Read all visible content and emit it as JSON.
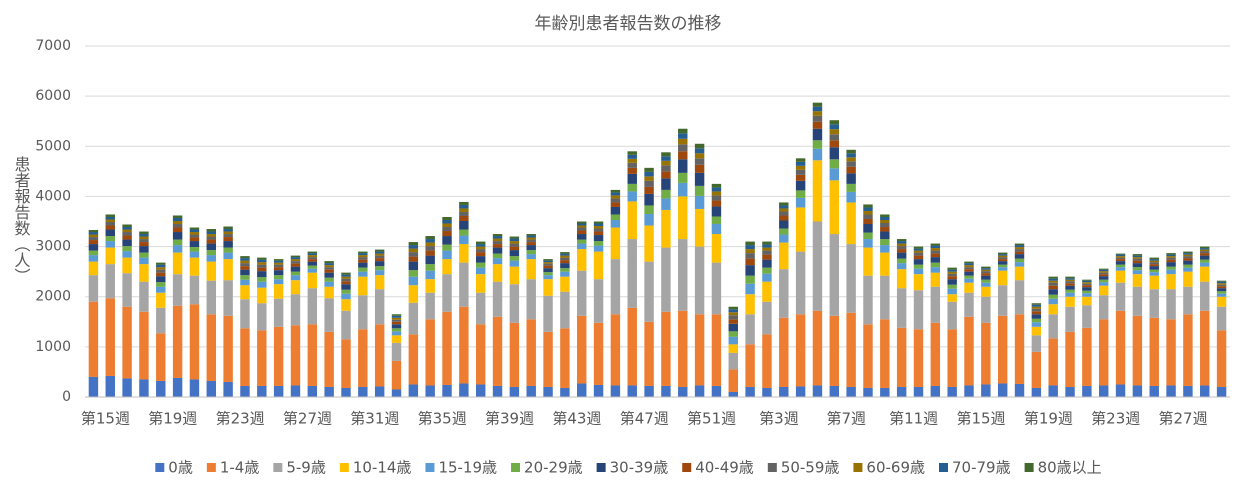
{
  "chart_data": {
    "type": "stacked_bar",
    "title": "年齢別患者報告数の推移",
    "y_label": "患者報告数（人）",
    "categories": [
      "第15週",
      null,
      null,
      null,
      "第19週",
      null,
      null,
      null,
      "第23週",
      null,
      null,
      null,
      "第27週",
      null,
      null,
      null,
      "第31週",
      null,
      null,
      null,
      "第35週",
      null,
      null,
      null,
      "第39週",
      null,
      null,
      null,
      "第43週",
      null,
      null,
      null,
      "第47週",
      null,
      null,
      null,
      "第51週",
      null,
      null,
      null,
      "第3週",
      null,
      null,
      null,
      "第7週",
      null,
      null,
      null,
      "第11週",
      null,
      null,
      null,
      "第15週",
      null,
      null,
      null,
      "第19週",
      null,
      null,
      null,
      "第23週",
      null,
      null,
      null,
      "第27週",
      null,
      null,
      null
    ],
    "ylim": [
      0,
      7000
    ],
    "yticks": [
      0,
      1000,
      2000,
      3000,
      4000,
      5000,
      6000,
      7000
    ],
    "grid": true,
    "legend": "bottom",
    "series": [
      {
        "name": "0歳",
        "color": "#4472c4",
        "values": [
          400,
          420,
          370,
          350,
          320,
          380,
          350,
          320,
          300,
          220,
          220,
          220,
          230,
          220,
          200,
          180,
          200,
          210,
          150,
          250,
          230,
          240,
          270,
          250,
          220,
          200,
          220,
          200,
          180,
          270,
          240,
          230,
          230,
          220,
          220,
          200,
          230,
          220,
          100,
          200,
          180,
          200,
          210,
          230,
          220,
          200,
          180,
          180,
          200,
          200,
          220,
          200,
          230,
          250,
          270,
          260,
          180,
          230,
          200,
          220,
          230,
          250,
          230,
          220,
          230,
          220,
          230,
          200
        ]
      },
      {
        "name": "1-4歳",
        "color": "#ed7d31",
        "values": [
          1500,
          1550,
          1430,
          1350,
          950,
          1440,
          1500,
          1330,
          1320,
          1150,
          1110,
          1180,
          1200,
          1230,
          1100,
          970,
          1150,
          1240,
          570,
          1000,
          1320,
          1460,
          1530,
          1200,
          1380,
          1280,
          1330,
          1100,
          1190,
          1350,
          1240,
          1420,
          1550,
          1280,
          1480,
          1520,
          1420,
          1430,
          450,
          850,
          1070,
          1380,
          1440,
          1490,
          1400,
          1480,
          1270,
          1370,
          1180,
          1150,
          1260,
          1150,
          1370,
          1230,
          1350,
          1390,
          720,
          940,
          1100,
          1160,
          1320,
          1470,
          1390,
          1360,
          1320,
          1430,
          1490,
          1130
        ]
      },
      {
        "name": "5-9歳",
        "color": "#a5a5a5",
        "values": [
          530,
          680,
          670,
          600,
          510,
          630,
          570,
          670,
          710,
          580,
          540,
          560,
          620,
          720,
          670,
          570,
          680,
          700,
          360,
          630,
          530,
          750,
          880,
          630,
          700,
          770,
          800,
          720,
          730,
          900,
          870,
          1100,
          1370,
          1200,
          1280,
          1430,
          1350,
          1030,
          330,
          600,
          650,
          970,
          1250,
          1780,
          1630,
          1370,
          970,
          870,
          790,
          780,
          720,
          550,
          480,
          520,
          610,
          680,
          330,
          480,
          500,
          450,
          480,
          560,
          580,
          570,
          600,
          550,
          580,
          470
        ]
      },
      {
        "name": "10-14歳",
        "color": "#ffc000",
        "values": [
          270,
          330,
          310,
          350,
          300,
          430,
          360,
          380,
          420,
          280,
          310,
          290,
          280,
          310,
          230,
          230,
          370,
          280,
          150,
          350,
          270,
          300,
          370,
          370,
          350,
          350,
          400,
          330,
          300,
          430,
          550,
          630,
          750,
          720,
          750,
          850,
          750,
          570,
          170,
          400,
          400,
          530,
          880,
          1220,
          1070,
          830,
          560,
          460,
          380,
          320,
          280,
          150,
          200,
          200,
          290,
          270,
          170,
          200,
          200,
          170,
          190,
          240,
          250,
          270,
          300,
          300,
          300,
          200
        ]
      },
      {
        "name": "15-19歳",
        "color": "#5b9bd5",
        "values": [
          130,
          130,
          130,
          130,
          120,
          150,
          120,
          130,
          130,
          110,
          120,
          100,
          100,
          80,
          100,
          110,
          100,
          100,
          80,
          170,
          170,
          170,
          170,
          130,
          120,
          120,
          100,
          80,
          100,
          110,
          120,
          150,
          200,
          230,
          230,
          270,
          260,
          200,
          150,
          210,
          160,
          160,
          190,
          230,
          240,
          210,
          170,
          150,
          120,
          110,
          110,
          110,
          80,
          80,
          70,
          90,
          90,
          110,
          80,
          70,
          70,
          70,
          80,
          70,
          90,
          80,
          80,
          60
        ]
      },
      {
        "name": "20-29歳",
        "color": "#70ad47",
        "values": [
          90,
          100,
          100,
          100,
          90,
          110,
          90,
          100,
          100,
          90,
          90,
          80,
          70,
          60,
          80,
          80,
          80,
          80,
          60,
          130,
          130,
          120,
          120,
          100,
          90,
          90,
          80,
          60,
          70,
          80,
          90,
          110,
          150,
          170,
          170,
          200,
          200,
          150,
          110,
          160,
          120,
          120,
          150,
          170,
          180,
          160,
          130,
          120,
          90,
          80,
          90,
          80,
          60,
          60,
          50,
          70,
          70,
          80,
          60,
          50,
          50,
          50,
          60,
          50,
          60,
          60,
          60,
          50
        ]
      },
      {
        "name": "30-39歳",
        "color": "#264478",
        "values": [
          130,
          130,
          130,
          130,
          120,
          150,
          120,
          130,
          130,
          110,
          120,
          100,
          100,
          80,
          100,
          110,
          100,
          100,
          80,
          170,
          170,
          170,
          170,
          130,
          120,
          120,
          100,
          80,
          100,
          110,
          120,
          150,
          200,
          230,
          230,
          270,
          260,
          200,
          150,
          210,
          160,
          160,
          190,
          230,
          240,
          210,
          170,
          150,
          120,
          110,
          110,
          110,
          80,
          80,
          70,
          90,
          90,
          110,
          80,
          70,
          70,
          70,
          80,
          70,
          90,
          80,
          80,
          60
        ]
      },
      {
        "name": "40-49歳",
        "color": "#9e480e",
        "values": [
          80,
          80,
          80,
          80,
          70,
          90,
          70,
          80,
          80,
          70,
          70,
          60,
          60,
          50,
          60,
          60,
          60,
          60,
          50,
          100,
          100,
          100,
          100,
          80,
          70,
          70,
          60,
          50,
          60,
          70,
          70,
          90,
          120,
          140,
          140,
          160,
          160,
          120,
          90,
          130,
          100,
          100,
          120,
          140,
          140,
          130,
          100,
          90,
          70,
          70,
          70,
          60,
          50,
          50,
          40,
          50,
          60,
          70,
          50,
          40,
          40,
          40,
          50,
          40,
          50,
          50,
          50,
          40
        ]
      },
      {
        "name": "50-59歳",
        "color": "#636363",
        "values": [
          60,
          70,
          70,
          60,
          60,
          70,
          60,
          60,
          60,
          60,
          60,
          50,
          50,
          40,
          50,
          50,
          50,
          50,
          40,
          90,
          90,
          80,
          80,
          60,
          60,
          60,
          50,
          40,
          50,
          60,
          60,
          80,
          100,
          120,
          120,
          140,
          130,
          100,
          80,
          110,
          80,
          80,
          100,
          120,
          120,
          110,
          90,
          80,
          60,
          60,
          60,
          50,
          40,
          40,
          40,
          50,
          50,
          60,
          40,
          30,
          30,
          30,
          40,
          40,
          40,
          40,
          40,
          30
        ]
      },
      {
        "name": "60-69歳",
        "color": "#997300",
        "values": [
          50,
          50,
          50,
          50,
          50,
          60,
          50,
          50,
          50,
          50,
          50,
          40,
          40,
          40,
          40,
          40,
          40,
          40,
          40,
          70,
          70,
          70,
          70,
          50,
          50,
          50,
          40,
          30,
          40,
          40,
          50,
          60,
          80,
          90,
          90,
          110,
          100,
          80,
          60,
          80,
          60,
          60,
          80,
          90,
          100,
          80,
          70,
          60,
          50,
          40,
          50,
          40,
          40,
          30,
          30,
          40,
          40,
          40,
          30,
          30,
          30,
          30,
          30,
          30,
          30,
          30,
          30,
          30
        ]
      },
      {
        "name": "70-79歳",
        "color": "#255e91",
        "values": [
          50,
          50,
          50,
          50,
          50,
          60,
          50,
          50,
          50,
          50,
          50,
          40,
          40,
          40,
          40,
          40,
          40,
          40,
          40,
          70,
          70,
          70,
          70,
          50,
          50,
          50,
          40,
          30,
          40,
          40,
          50,
          60,
          80,
          90,
          90,
          110,
          100,
          80,
          60,
          80,
          60,
          60,
          80,
          90,
          100,
          80,
          70,
          60,
          50,
          40,
          50,
          40,
          40,
          30,
          30,
          40,
          40,
          40,
          30,
          30,
          30,
          30,
          30,
          30,
          30,
          30,
          30,
          30
        ]
      },
      {
        "name": "80歳以上",
        "color": "#43682b",
        "values": [
          40,
          50,
          50,
          50,
          40,
          50,
          40,
          50,
          50,
          40,
          40,
          30,
          30,
          30,
          40,
          40,
          30,
          40,
          30,
          60,
          60,
          60,
          60,
          50,
          40,
          40,
          30,
          30,
          30,
          40,
          40,
          50,
          70,
          80,
          80,
          90,
          90,
          70,
          50,
          70,
          60,
          60,
          70,
          80,
          80,
          70,
          60,
          50,
          40,
          40,
          40,
          40,
          30,
          30,
          30,
          30,
          30,
          40,
          30,
          20,
          20,
          20,
          30,
          30,
          30,
          30,
          30,
          20
        ]
      }
    ]
  }
}
